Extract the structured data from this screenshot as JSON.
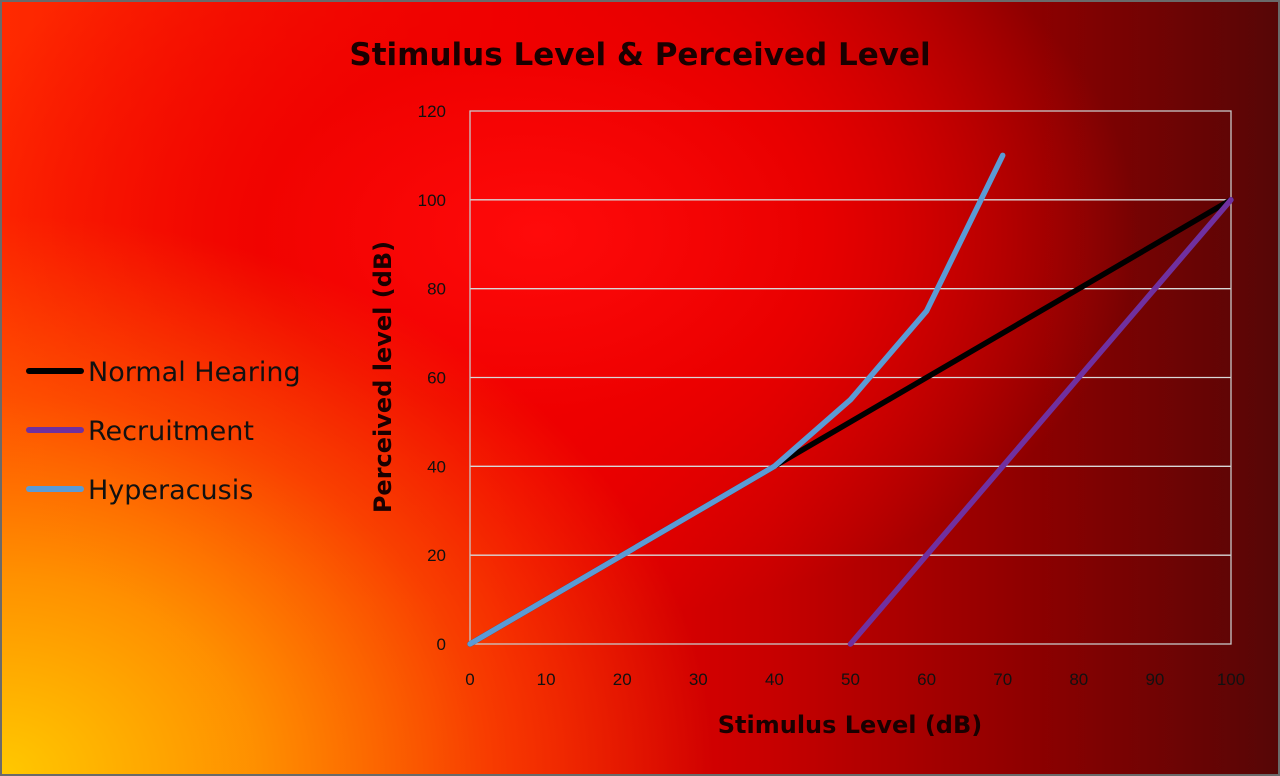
{
  "chart_data": {
    "type": "line",
    "title": "Stimulus Level & Perceived Level",
    "xlabel": "Stimulus Level (dB)",
    "ylabel": "Perceived level (dB)",
    "xlim": [
      0,
      100
    ],
    "ylim": [
      0,
      120
    ],
    "x_ticks": [
      0,
      10,
      20,
      30,
      40,
      50,
      60,
      70,
      80,
      90,
      100
    ],
    "y_ticks": [
      0,
      20,
      40,
      60,
      80,
      100,
      120
    ],
    "grid": true,
    "legend_position": "left",
    "series": [
      {
        "name": "Normal Hearing",
        "color": "#000000",
        "points": [
          [
            0,
            0
          ],
          [
            10,
            10
          ],
          [
            20,
            20
          ],
          [
            30,
            30
          ],
          [
            40,
            40
          ],
          [
            50,
            50
          ],
          [
            60,
            60
          ],
          [
            70,
            70
          ],
          [
            80,
            80
          ],
          [
            90,
            90
          ],
          [
            100,
            100
          ]
        ]
      },
      {
        "name": "Recruitment",
        "color": "#7030a0",
        "points": [
          [
            50,
            0
          ],
          [
            60,
            20
          ],
          [
            70,
            40
          ],
          [
            80,
            60
          ],
          [
            90,
            80
          ],
          [
            100,
            100
          ]
        ]
      },
      {
        "name": "Hyperacusis",
        "color": "#5b9bd5",
        "points": [
          [
            0,
            0
          ],
          [
            10,
            10
          ],
          [
            20,
            20
          ],
          [
            30,
            30
          ],
          [
            40,
            40
          ],
          [
            50,
            55
          ],
          [
            60,
            75
          ],
          [
            70,
            110
          ]
        ]
      }
    ]
  }
}
